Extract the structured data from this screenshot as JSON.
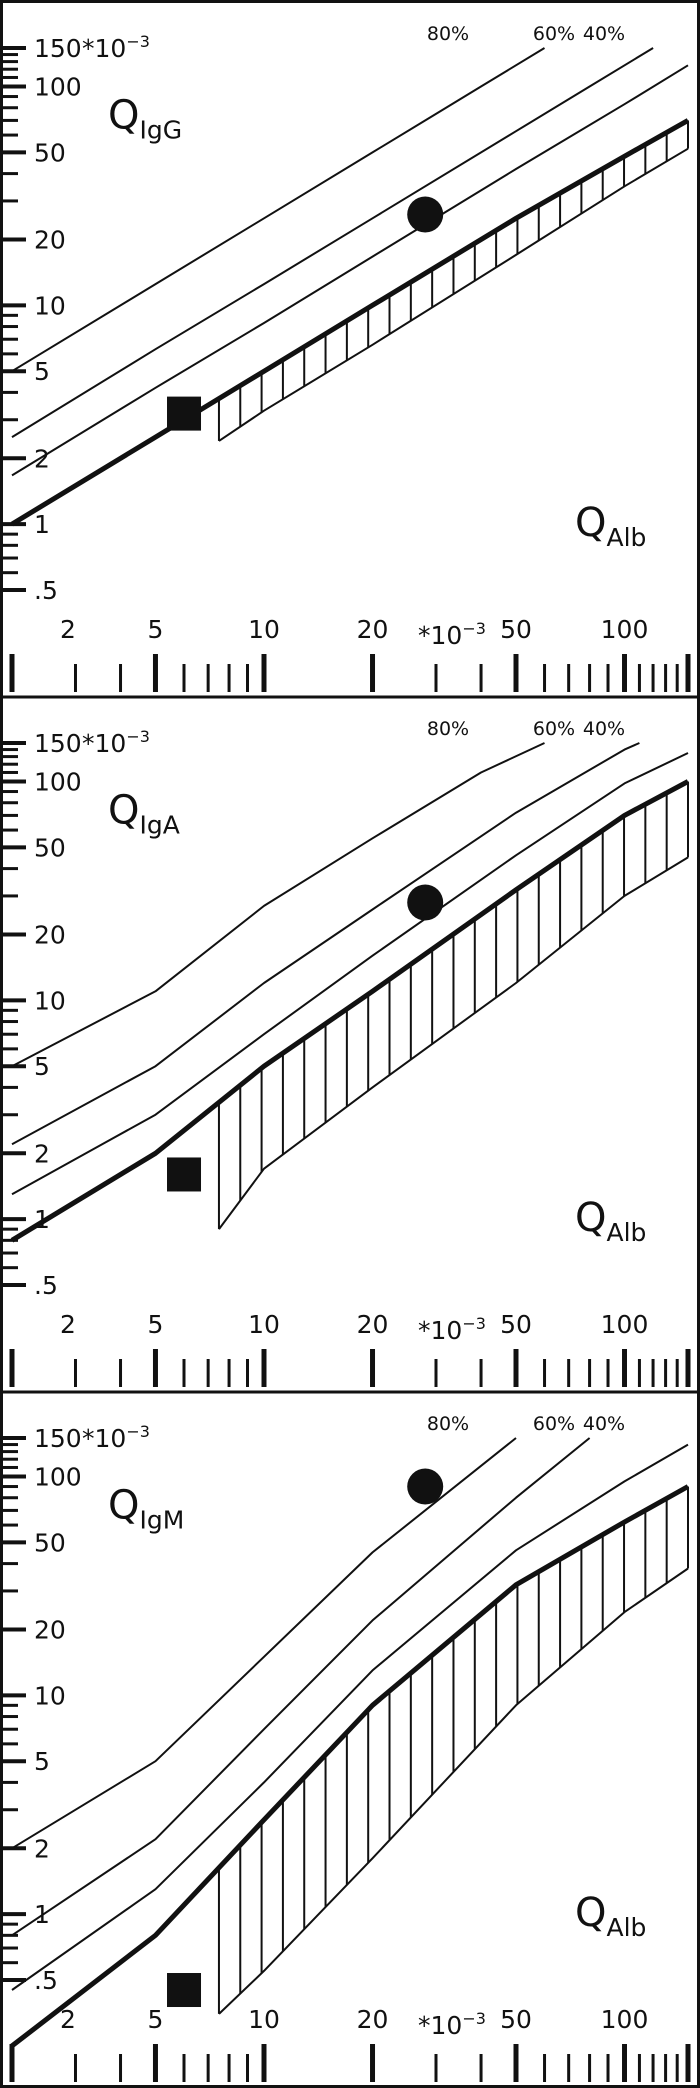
{
  "chart_data": [
    {
      "type": "line",
      "panel": "IgG",
      "ylabel_main": "Q",
      "ylabel_sub": "IgG",
      "xlabel_main": "Q",
      "xlabel_sub": "Alb",
      "unit": "*10",
      "unit_exp": "−3",
      "x_scale": "log",
      "y_scale": "log",
      "xlim": [
        2,
        150
      ],
      "ylim": [
        0.5,
        150
      ],
      "x_ticks": [
        "2",
        "5",
        "10",
        "20",
        "50",
        "100"
      ],
      "y_ticks": [
        "150",
        "100",
        "50",
        "20",
        "10",
        "5",
        "2",
        "1",
        ".5"
      ],
      "percent_labels": [
        "80%",
        "60%",
        "40%"
      ],
      "upper_limit_curve": [
        [
          2,
          1.0
        ],
        [
          5,
          2.5
        ],
        [
          10,
          5.0
        ],
        [
          20,
          10.0
        ],
        [
          50,
          25.0
        ],
        [
          100,
          48.0
        ],
        [
          150,
          70.0
        ]
      ],
      "lower_limit_curve": [
        [
          7.5,
          2.4
        ],
        [
          10,
          3.3
        ],
        [
          20,
          6.6
        ],
        [
          50,
          17.0
        ],
        [
          100,
          35.0
        ],
        [
          150,
          52.0
        ]
      ],
      "fraction_lines": [
        {
          "label": "80%",
          "points": [
            [
              2,
              5.0
            ],
            [
              5,
              12.5
            ],
            [
              10,
              25.0
            ],
            [
              20,
              50.0
            ],
            [
              30,
              75.0
            ],
            [
              40,
              100.0
            ],
            [
              60,
              150.0
            ]
          ]
        },
        {
          "label": "60%",
          "points": [
            [
              2,
              2.5
            ],
            [
              5,
              6.3
            ],
            [
              10,
              12.5
            ],
            [
              20,
              25.0
            ],
            [
              50,
              62.5
            ],
            [
              80,
              100.0
            ],
            [
              120,
              150.0
            ]
          ]
        },
        {
          "label": "40%",
          "points": [
            [
              2,
              1.67
            ],
            [
              5,
              4.2
            ],
            [
              10,
              8.3
            ],
            [
              20,
              16.7
            ],
            [
              50,
              42.0
            ],
            [
              100,
              83.0
            ],
            [
              150,
              125.0
            ]
          ]
        }
      ],
      "points": [
        {
          "marker": "square",
          "x": 6.0,
          "y": 3.2
        },
        {
          "marker": "circle",
          "x": 28.0,
          "y": 26.0
        }
      ]
    },
    {
      "type": "line",
      "panel": "IgA",
      "ylabel_main": "Q",
      "ylabel_sub": "IgA",
      "xlabel_main": "Q",
      "xlabel_sub": "Alb",
      "unit": "*10",
      "unit_exp": "−3",
      "x_scale": "log",
      "y_scale": "log",
      "xlim": [
        2,
        150
      ],
      "ylim": [
        0.5,
        150
      ],
      "x_ticks": [
        "2",
        "5",
        "10",
        "20",
        "50",
        "100"
      ],
      "y_ticks": [
        "150",
        "100",
        "50",
        "20",
        "10",
        "5",
        "2",
        "1",
        ".5"
      ],
      "percent_labels": [
        "80%",
        "60%",
        "40%"
      ],
      "upper_limit_curve": [
        [
          2,
          0.8
        ],
        [
          5,
          2.0
        ],
        [
          10,
          5.0
        ],
        [
          20,
          11.0
        ],
        [
          50,
          32.0
        ],
        [
          100,
          70.0
        ],
        [
          150,
          100.0
        ]
      ],
      "lower_limit_curve": [
        [
          7.5,
          0.9
        ],
        [
          10,
          1.7
        ],
        [
          20,
          4.0
        ],
        [
          50,
          12.0
        ],
        [
          100,
          30.0
        ],
        [
          150,
          45.0
        ]
      ],
      "fraction_lines": [
        {
          "label": "80%",
          "points": [
            [
              2,
              5.0
            ],
            [
              5,
              11.0
            ],
            [
              10,
              27.0
            ],
            [
              20,
              55.0
            ],
            [
              40,
              110.0
            ],
            [
              60,
              150.0
            ]
          ]
        },
        {
          "label": "60%",
          "points": [
            [
              2,
              2.2
            ],
            [
              5,
              5.0
            ],
            [
              10,
              12.0
            ],
            [
              20,
              26.0
            ],
            [
              50,
              72.0
            ],
            [
              100,
              140.0
            ],
            [
              110,
              150.0
            ]
          ]
        },
        {
          "label": "40%",
          "points": [
            [
              2,
              1.3
            ],
            [
              5,
              3.0
            ],
            [
              10,
              7.0
            ],
            [
              20,
              16.0
            ],
            [
              50,
              46.0
            ],
            [
              100,
              98.0
            ],
            [
              150,
              135.0
            ]
          ]
        }
      ],
      "points": [
        {
          "marker": "square",
          "x": 6.0,
          "y": 1.6
        },
        {
          "marker": "circle",
          "x": 28.0,
          "y": 28.0
        }
      ]
    },
    {
      "type": "line",
      "panel": "IgM",
      "ylabel_main": "Q",
      "ylabel_sub": "IgM",
      "xlabel_main": "Q",
      "xlabel_sub": "Alb",
      "unit": "*10",
      "unit_exp": "−3",
      "x_scale": "log",
      "y_scale": "log",
      "xlim": [
        2,
        150
      ],
      "ylim": [
        0.5,
        150
      ],
      "x_ticks": [
        "2",
        "5",
        "10",
        "20",
        "50",
        "100"
      ],
      "y_ticks": [
        "150",
        "100",
        "50",
        "20",
        "10",
        "5",
        "2",
        "1",
        ".5"
      ],
      "percent_labels": [
        "80%",
        "60%",
        "40%"
      ],
      "upper_limit_curve": [
        [
          2,
          0.25
        ],
        [
          5,
          0.8
        ],
        [
          10,
          2.7
        ],
        [
          20,
          9.0
        ],
        [
          50,
          32.0
        ],
        [
          100,
          62.0
        ],
        [
          150,
          90.0
        ]
      ],
      "lower_limit_curve": [
        [
          7.5,
          0.35
        ],
        [
          10,
          0.55
        ],
        [
          20,
          1.8
        ],
        [
          50,
          9.0
        ],
        [
          100,
          24.0
        ],
        [
          150,
          38.0
        ]
      ],
      "fraction_lines": [
        {
          "label": "80%",
          "points": [
            [
              2,
              2.0
            ],
            [
              5,
              5.0
            ],
            [
              10,
              15.0
            ],
            [
              20,
              45.0
            ],
            [
              50,
              150.0
            ]
          ]
        },
        {
          "label": "60%",
          "points": [
            [
              2,
              0.8
            ],
            [
              5,
              2.2
            ],
            [
              10,
              7.0
            ],
            [
              20,
              22.0
            ],
            [
              50,
              80.0
            ],
            [
              80,
              150.0
            ]
          ]
        },
        {
          "label": "40%",
          "points": [
            [
              2,
              0.45
            ],
            [
              5,
              1.3
            ],
            [
              10,
              4.0
            ],
            [
              20,
              13.0
            ],
            [
              50,
              46.0
            ],
            [
              100,
              95.0
            ],
            [
              150,
              140.0
            ]
          ]
        }
      ],
      "points": [
        {
          "marker": "square",
          "x": 6.0,
          "y": 0.45
        },
        {
          "marker": "circle",
          "x": 28.0,
          "y": 90.0
        }
      ]
    }
  ]
}
